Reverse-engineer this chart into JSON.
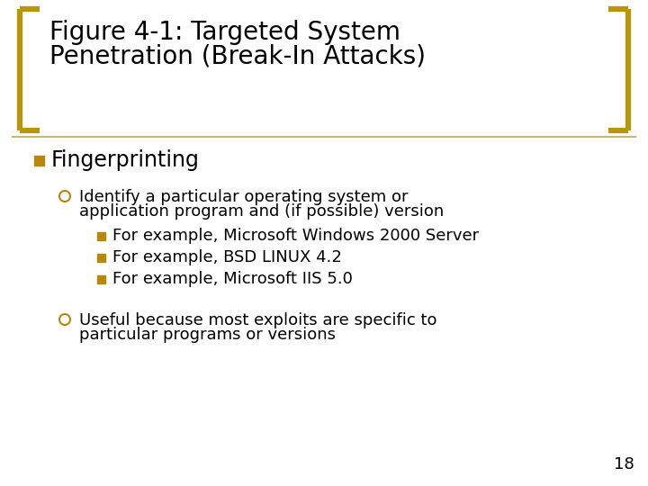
{
  "bg_color": "#ffffff",
  "title_line1": "Figure 4-1: Targeted System",
  "title_line2": "Penetration (Break-In Attacks)",
  "title_color": "#000000",
  "title_fontsize": 20,
  "bracket_color": "#b8960c",
  "divider_color": "#c8b86e",
  "bullet1_color": "#b8860b",
  "bullet2_color": "#b8860b",
  "bullet3_color": "#b8860b",
  "level1_text": "Fingerprinting",
  "level1_fontsize": 17,
  "level2_line1_text": "Identify a particular operating system or",
  "level2_line1b_text": "application program and (if possible) version",
  "level3_items": [
    "For example, Microsoft Windows 2000 Server",
    "For example, BSD LINUX 4.2",
    "For example, Microsoft IIS 5.0"
  ],
  "level2_line2_text": "Useful because most exploits are specific to",
  "level2_line2b_text": "particular programs or versions",
  "level2_fontsize": 13,
  "level3_fontsize": 13,
  "page_number": "18",
  "page_number_fontsize": 13
}
